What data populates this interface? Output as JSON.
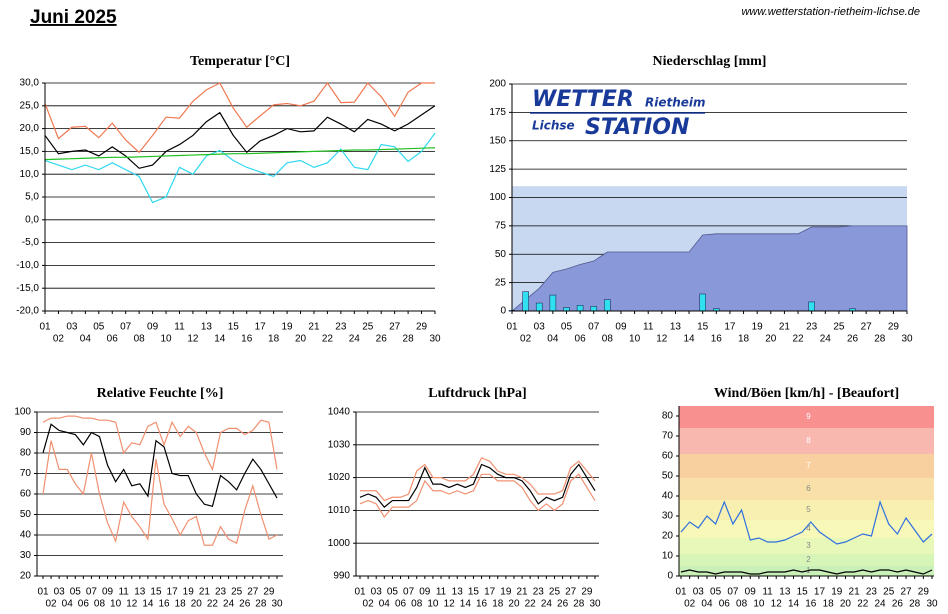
{
  "header": {
    "title": "Juni 2025",
    "url": "www.wetterstation-rietheim-lichse.de"
  },
  "logo": {
    "word1": "WETTER",
    "place1": "Rietheim",
    "place2": "Lichse",
    "word2": "STATION"
  },
  "chart_data": [
    {
      "type": "line",
      "title": "Temperatur [°C]",
      "categories": [
        "01",
        "02",
        "03",
        "04",
        "05",
        "06",
        "07",
        "08",
        "09",
        "10",
        "11",
        "12",
        "13",
        "14",
        "15",
        "16",
        "17",
        "18",
        "19",
        "20",
        "21",
        "22",
        "23",
        "24",
        "25",
        "26",
        "27",
        "28",
        "29",
        "30"
      ],
      "ylim": [
        -20,
        30
      ],
      "yticks": [
        {
          "value": -20,
          "label": "-20,0"
        },
        {
          "value": -15,
          "label": "-15,0"
        },
        {
          "value": -10,
          "label": "-10,0"
        },
        {
          "value": -5,
          "label": "-5,0"
        },
        {
          "value": 0,
          "label": "0,0"
        },
        {
          "value": 5,
          "label": "5,0"
        },
        {
          "value": 10,
          "label": "10,0"
        },
        {
          "value": 15,
          "label": "15,0"
        },
        {
          "value": 20,
          "label": "20,0"
        },
        {
          "value": 25,
          "label": "25,0"
        },
        {
          "value": 30,
          "label": "30,0"
        }
      ],
      "grid": true,
      "series": [
        {
          "color": "#f07850",
          "values": [
            25.5,
            17.8,
            20.3,
            20.5,
            18.0,
            21.2,
            17.5,
            14.8,
            18.5,
            22.5,
            22.3,
            26.0,
            28.5,
            30.0,
            24.5,
            20.3,
            22.8,
            25.2,
            25.5,
            25.0,
            26.0,
            30.0,
            25.7,
            25.8,
            30.0,
            27.0,
            22.7,
            28.0,
            30.0,
            30.0
          ]
        },
        {
          "color": "#000000",
          "values": [
            18.5,
            14.5,
            15.0,
            15.3,
            14.0,
            16.0,
            14.0,
            11.3,
            12.0,
            15.0,
            16.5,
            18.5,
            21.5,
            23.5,
            18.5,
            14.8,
            17.3,
            18.5,
            20.0,
            19.3,
            19.5,
            22.5,
            21.0,
            19.3,
            22.0,
            21.0,
            19.5,
            21.0,
            23.0,
            25.0
          ]
        },
        {
          "color": "#30d8f0",
          "values": [
            13.0,
            12.0,
            11.0,
            12.0,
            11.0,
            12.5,
            11.0,
            9.5,
            3.8,
            5.0,
            11.5,
            10.0,
            14.0,
            15.2,
            13.0,
            11.5,
            10.5,
            9.5,
            12.5,
            13.0,
            11.5,
            12.5,
            15.5,
            11.5,
            11.0,
            16.5,
            16.0,
            12.8,
            15.0,
            19.0
          ]
        },
        {
          "color": "#20c020",
          "values": [
            13.2,
            13.3,
            13.4,
            13.5,
            13.6,
            13.7,
            13.7,
            13.8,
            13.9,
            14.0,
            14.1,
            14.2,
            14.3,
            14.4,
            14.5,
            14.5,
            14.6,
            14.7,
            14.8,
            14.9,
            15.0,
            15.1,
            15.2,
            15.3,
            15.3,
            15.4,
            15.5,
            15.6,
            15.7,
            15.8
          ]
        }
      ]
    },
    {
      "type": "bar",
      "title": "Niederschlag [mm]",
      "categories": [
        "01",
        "02",
        "03",
        "04",
        "05",
        "06",
        "07",
        "08",
        "09",
        "10",
        "11",
        "12",
        "13",
        "14",
        "15",
        "16",
        "17",
        "18",
        "19",
        "20",
        "21",
        "22",
        "23",
        "24",
        "25",
        "26",
        "27",
        "28",
        "29",
        "30"
      ],
      "ylim": [
        0,
        200
      ],
      "yticks": [
        0,
        25,
        50,
        75,
        100,
        125,
        150,
        175,
        200
      ],
      "grid": true,
      "bands": [
        {
          "from": 0,
          "to": 110,
          "color": "#c8d8f0"
        }
      ],
      "series": [
        {
          "type": "area",
          "color": "#8898d8",
          "values": [
            0,
            10,
            20,
            34,
            37,
            41,
            44,
            52,
            52,
            52,
            52,
            52,
            52,
            52,
            67,
            68,
            68,
            68,
            68,
            68,
            68,
            68,
            74,
            74,
            74,
            75,
            75,
            75,
            75,
            75
          ]
        },
        {
          "color": "#30e0f0",
          "values": [
            0.5,
            17,
            7,
            14,
            3,
            5,
            4,
            10,
            0,
            0,
            0,
            0,
            0,
            0,
            15,
            2,
            0,
            0,
            0,
            0,
            0,
            0,
            8,
            0,
            0,
            2,
            0,
            0,
            0,
            0
          ]
        }
      ]
    },
    {
      "type": "line",
      "title": "Relative Feuchte [%]",
      "categories": [
        "01",
        "02",
        "03",
        "04",
        "05",
        "06",
        "07",
        "08",
        "09",
        "10",
        "11",
        "12",
        "13",
        "14",
        "15",
        "16",
        "17",
        "18",
        "19",
        "20",
        "21",
        "22",
        "23",
        "24",
        "25",
        "26",
        "27",
        "28",
        "29",
        "30"
      ],
      "ylim": [
        20,
        100
      ],
      "yticks": [
        20,
        30,
        40,
        50,
        60,
        70,
        80,
        90,
        100
      ],
      "grid": true,
      "series": [
        {
          "color": "#f09070",
          "values": [
            95,
            97,
            97,
            98,
            98,
            97,
            97,
            96,
            96,
            95,
            80,
            85,
            84,
            93,
            95,
            84,
            95,
            88,
            93,
            90,
            80,
            72,
            90,
            92,
            92,
            89,
            91,
            96,
            95,
            72
          ]
        },
        {
          "color": "#000000",
          "values": [
            80,
            94,
            91,
            90,
            89,
            84,
            90,
            88,
            74,
            66,
            72,
            64,
            65,
            59,
            86,
            83,
            70,
            69,
            69,
            60,
            55,
            54,
            69,
            66,
            62,
            70,
            77,
            72,
            65,
            58
          ]
        },
        {
          "color": "#f09070",
          "values": [
            60,
            86,
            72,
            72,
            65,
            60,
            80,
            60,
            46,
            37,
            56,
            49,
            44,
            38,
            77,
            55,
            48,
            40,
            47,
            49,
            35,
            35,
            44,
            38,
            36,
            52,
            64,
            50,
            38,
            40
          ]
        }
      ]
    },
    {
      "type": "line",
      "title": "Luftdruck [hPa]",
      "categories": [
        "01",
        "02",
        "03",
        "04",
        "05",
        "06",
        "07",
        "08",
        "09",
        "10",
        "11",
        "12",
        "13",
        "14",
        "15",
        "16",
        "17",
        "18",
        "19",
        "20",
        "21",
        "22",
        "23",
        "24",
        "25",
        "26",
        "27",
        "28",
        "29",
        "30"
      ],
      "ylim": [
        990,
        1040
      ],
      "yticks": [
        990,
        1000,
        1010,
        1020,
        1030,
        1040
      ],
      "grid": true,
      "series": [
        {
          "color": "#f09070",
          "values": [
            1016,
            1016,
            1016,
            1013,
            1014,
            1014,
            1015,
            1022,
            1024,
            1020,
            1020,
            1019,
            1019,
            1019,
            1021,
            1026,
            1025,
            1022,
            1021,
            1021,
            1020,
            1018,
            1015,
            1015,
            1015,
            1016,
            1023,
            1025,
            1022,
            1019
          ]
        },
        {
          "color": "#000000",
          "values": [
            1014,
            1015,
            1014,
            1011,
            1013,
            1013,
            1013,
            1017,
            1023,
            1018,
            1018,
            1017,
            1018,
            1017,
            1018,
            1024,
            1023,
            1021,
            1020,
            1020,
            1019,
            1016,
            1012,
            1014,
            1013,
            1014,
            1021,
            1024,
            1020,
            1016
          ]
        },
        {
          "color": "#f09070",
          "values": [
            1012,
            1013,
            1012,
            1008,
            1011,
            1011,
            1011,
            1013,
            1019,
            1016,
            1016,
            1015,
            1016,
            1015,
            1016,
            1021,
            1021,
            1019,
            1019,
            1019,
            1017,
            1013,
            1010,
            1012,
            1010,
            1012,
            1019,
            1021,
            1017,
            1013
          ]
        }
      ]
    },
    {
      "type": "line",
      "title": "Wind/Böen [km/h] - [Beaufort]",
      "categories": [
        "01",
        "02",
        "03",
        "04",
        "05",
        "06",
        "07",
        "08",
        "09",
        "10",
        "11",
        "12",
        "13",
        "14",
        "15",
        "16",
        "17",
        "18",
        "19",
        "20",
        "21",
        "22",
        "23",
        "24",
        "25",
        "26",
        "27",
        "28",
        "29",
        "30"
      ],
      "ylim": [
        0,
        85
      ],
      "yticks": [
        0,
        10,
        20,
        30,
        40,
        50,
        60,
        70,
        80
      ],
      "grid": false,
      "bands": [
        {
          "label": "1",
          "from": 0,
          "to": 5,
          "color": "#c8f0b8"
        },
        {
          "label": "2",
          "from": 5,
          "to": 11,
          "color": "#d8f5b8"
        },
        {
          "label": "3",
          "from": 11,
          "to": 19,
          "color": "#e8f8b8"
        },
        {
          "label": "4",
          "from": 19,
          "to": 28,
          "color": "#f8f8b8"
        },
        {
          "label": "5",
          "from": 28,
          "to": 38,
          "color": "#f8f0b0"
        },
        {
          "label": "6",
          "from": 38,
          "to": 49,
          "color": "#f8e0a8"
        },
        {
          "label": "7",
          "from": 49,
          "to": 61,
          "color": "#f8d0a0"
        },
        {
          "label": "8",
          "from": 61,
          "to": 74,
          "color": "#f8b8b0"
        },
        {
          "label": "9",
          "from": 74,
          "to": 88,
          "color": "#f89090"
        }
      ],
      "series": [
        {
          "color": "#3070e0",
          "values": [
            22,
            27,
            24,
            30,
            26,
            37,
            26,
            33,
            18,
            19,
            17,
            17,
            18,
            20,
            22,
            27,
            22,
            19,
            16,
            17,
            19,
            21,
            20,
            37,
            26,
            21,
            29,
            23,
            17,
            21
          ]
        },
        {
          "color": "#000000",
          "values": [
            2,
            3,
            2,
            2,
            1,
            2,
            2,
            2,
            1,
            1,
            2,
            2,
            2,
            3,
            2,
            3,
            3,
            2,
            1,
            2,
            2,
            3,
            2,
            3,
            3,
            2,
            3,
            2,
            1,
            3
          ]
        }
      ]
    }
  ]
}
